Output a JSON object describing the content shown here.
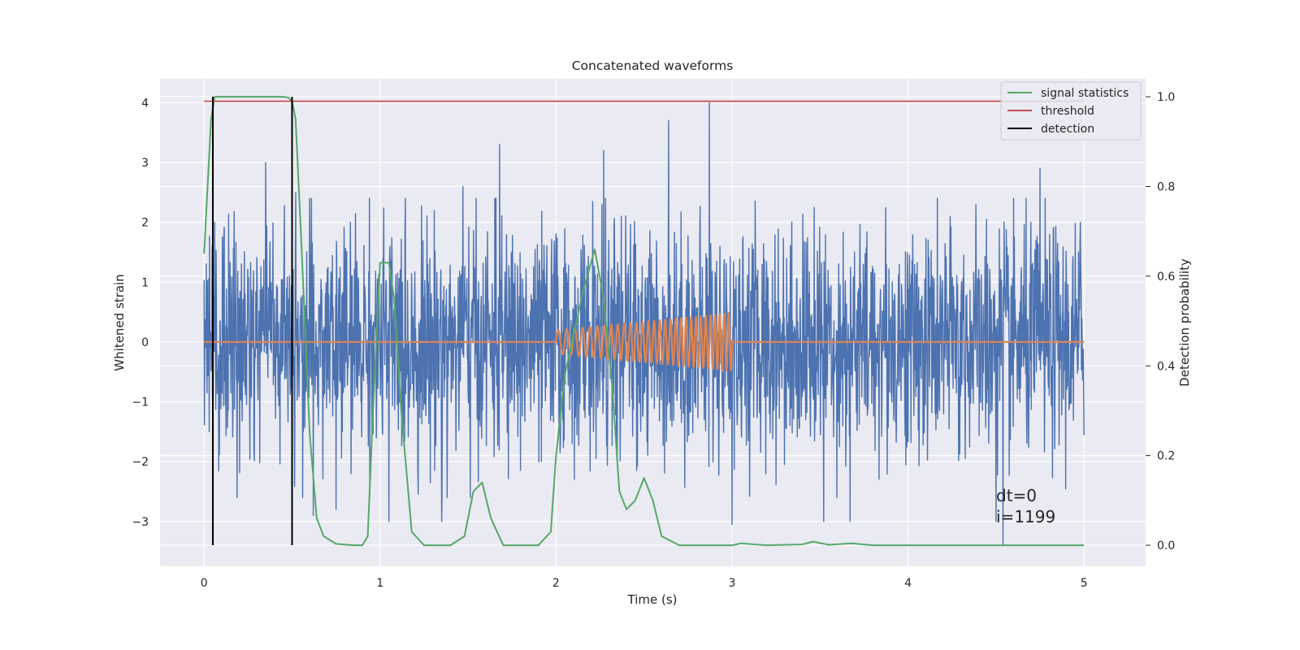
{
  "chart_data": {
    "type": "line",
    "title": "Concatenated waveforms",
    "xlabel": "Time (s)",
    "ylabel": "Whitened strain",
    "y2label": "Detection probability",
    "xlim": [
      -0.25,
      5.35
    ],
    "ylim": [
      -3.75,
      4.4
    ],
    "y2lim": [
      -0.047,
      1.04
    ],
    "xticks": [
      "0",
      "1",
      "2",
      "3",
      "4",
      "5"
    ],
    "yticks": [
      "4",
      "3",
      "2",
      "1",
      "0",
      "−1",
      "−2",
      "−3"
    ],
    "y2ticks": [
      "1.0",
      "0.8",
      "0.6",
      "0.4",
      "0.2",
      "0.0"
    ],
    "grid": true,
    "background": "#eaeaf2",
    "legend_position": "top-right",
    "legend": [
      {
        "label": "signal statistics",
        "color": "#55a868"
      },
      {
        "label": "threshold",
        "color": "#c44e52"
      },
      {
        "label": "detection",
        "color": "#000000"
      }
    ],
    "series": [
      {
        "color": "#4c72b0",
        "axis": "left",
        "description_values": {
          "x_range": [
            0,
            5
          ],
          "typical_amplitude": 1.0,
          "spikes": [
            [
              0.03,
              -1.5
            ],
            [
              0.06,
              2.0
            ],
            [
              0.35,
              3.0
            ],
            [
              0.52,
              2.5
            ],
            [
              0.56,
              -2.6
            ],
            [
              0.62,
              -2.9
            ],
            [
              0.75,
              -2.8
            ],
            [
              1.05,
              -3.0
            ],
            [
              1.35,
              -3.0
            ],
            [
              1.47,
              2.6
            ],
            [
              1.68,
              3.3
            ],
            [
              2.27,
              3.2
            ],
            [
              2.64,
              3.7
            ],
            [
              2.87,
              4.0
            ],
            [
              3.0,
              -3.05
            ],
            [
              3.52,
              -3.0
            ],
            [
              3.67,
              -3.0
            ],
            [
              4.5,
              -3.0
            ],
            [
              4.54,
              -3.4
            ],
            [
              4.75,
              2.9
            ],
            [
              4.98,
              2.0
            ]
          ]
        }
      },
      {
        "color": "#dd8452",
        "axis": "left",
        "description_values": {
          "flat_value": 0,
          "chirp_start": 2.0,
          "chirp_end": 3.0,
          "amplitude_start": 0.2,
          "amplitude_end": 0.48,
          "freq_start": 20,
          "freq_end": 40
        }
      },
      {
        "name": "signal statistics",
        "color": "#55a868",
        "axis": "right",
        "x": [
          0.0,
          0.02,
          0.04,
          0.06,
          0.08,
          0.1,
          0.2,
          0.3,
          0.4,
          0.45,
          0.48,
          0.5,
          0.52,
          0.55,
          0.6,
          0.64,
          0.68,
          0.75,
          0.85,
          0.9,
          0.93,
          0.96,
          1.0,
          1.05,
          1.08,
          1.12,
          1.18,
          1.25,
          1.4,
          1.48,
          1.53,
          1.58,
          1.63,
          1.7,
          1.8,
          1.9,
          1.97,
          2.0,
          2.05,
          2.1,
          2.15,
          2.22,
          2.27,
          2.32,
          2.36,
          2.4,
          2.45,
          2.5,
          2.55,
          2.6,
          2.7,
          3.0,
          3.05,
          3.2,
          3.4,
          3.46,
          3.55,
          3.68,
          3.8,
          4.5,
          5.0
        ],
        "values": [
          0.65,
          0.8,
          0.95,
          1.0,
          1.0,
          1.0,
          1.0,
          1.0,
          1.0,
          1.0,
          0.998,
          0.99,
          0.95,
          0.7,
          0.25,
          0.06,
          0.02,
          0.003,
          0.0,
          0.0,
          0.02,
          0.3,
          0.63,
          0.63,
          0.55,
          0.3,
          0.03,
          0.0,
          0.0,
          0.02,
          0.12,
          0.14,
          0.06,
          0.0,
          0.0,
          0.0,
          0.03,
          0.2,
          0.38,
          0.47,
          0.56,
          0.66,
          0.55,
          0.35,
          0.12,
          0.08,
          0.1,
          0.15,
          0.1,
          0.02,
          0.0,
          0.0,
          0.004,
          0.0,
          0.002,
          0.008,
          0.001,
          0.004,
          0.0,
          0.0,
          0.0
        ]
      },
      {
        "name": "threshold",
        "color": "#c44e52",
        "axis": "right",
        "x": [
          0,
          5
        ],
        "values": [
          0.99,
          0.99
        ]
      },
      {
        "name": "detection",
        "color": "#000000",
        "axis": "right",
        "type": "vlines",
        "x": [
          0.05,
          0.5
        ],
        "ymin": 0.0,
        "ymax": 1.0
      }
    ],
    "annotations": [
      "dt=0",
      "i=1199"
    ]
  }
}
